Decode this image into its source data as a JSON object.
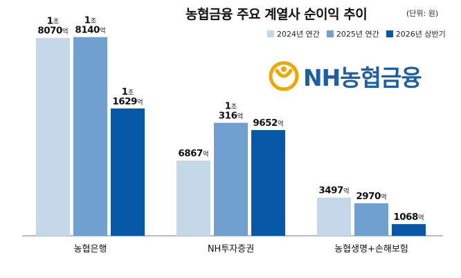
{
  "title": "농협금융 주요 계열사 순이익 추이",
  "unit_note": "(단위: 원)",
  "logo_text": "NH농협금융",
  "colors": {
    "series_2024": "#c5d8ea",
    "series_2025": "#6fa0cf",
    "series_2026": "#0858a8",
    "logo": "#1a5fa8",
    "logo_emblem": "#f0a800"
  },
  "chart_data": {
    "type": "bar",
    "categories": [
      "농협은행",
      "NH투자증권",
      "농협생명+손해보험"
    ],
    "series": [
      {
        "name": "2024년 연간",
        "values": [
          18070,
          6867,
          3497
        ],
        "labels": [
          "1조|8070억",
          "6867억",
          "3497억"
        ]
      },
      {
        "name": "2025년 연간",
        "values": [
          18140,
          10316,
          2970
        ],
        "labels": [
          "1조|8140억",
          "1조|316억",
          "2970억"
        ]
      },
      {
        "name": "2026년 상반기",
        "values": [
          11629,
          9652,
          1068
        ],
        "labels": [
          "1조|1629억",
          "9652억",
          "1068억"
        ]
      }
    ],
    "value_unit": "억원",
    "ylim": [
      0,
      19000
    ],
    "axis_visible": false,
    "legend_position": "top-right"
  }
}
